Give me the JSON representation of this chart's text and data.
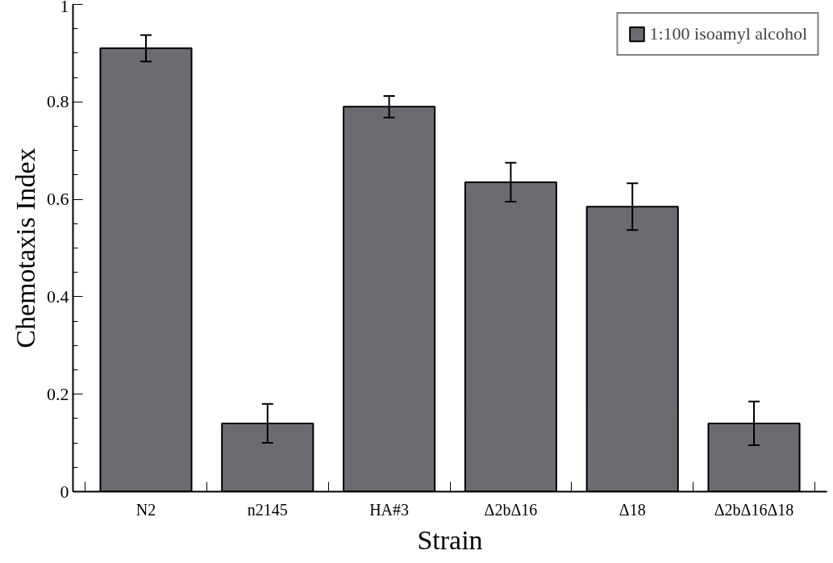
{
  "chart_data": {
    "type": "bar",
    "xlabel": "Strain",
    "ylabel": "Chemotaxis Index",
    "categories": [
      "N2",
      "n2145",
      "HA#3",
      "Δ2bΔ16",
      "Δ18",
      "Δ2bΔ16Δ18"
    ],
    "series": [
      {
        "name": "1:100 isoamyl alcohol",
        "color": "#6e6a72",
        "values": [
          0.91,
          0.14,
          0.79,
          0.635,
          0.585,
          0.14
        ],
        "errors": [
          0.027,
          0.04,
          0.022,
          0.04,
          0.048,
          0.045
        ]
      }
    ],
    "ylim": [
      0,
      1
    ],
    "yticks": [
      0,
      0.2,
      0.4,
      0.6,
      0.8,
      1
    ],
    "grid": false,
    "legend": "top right"
  }
}
